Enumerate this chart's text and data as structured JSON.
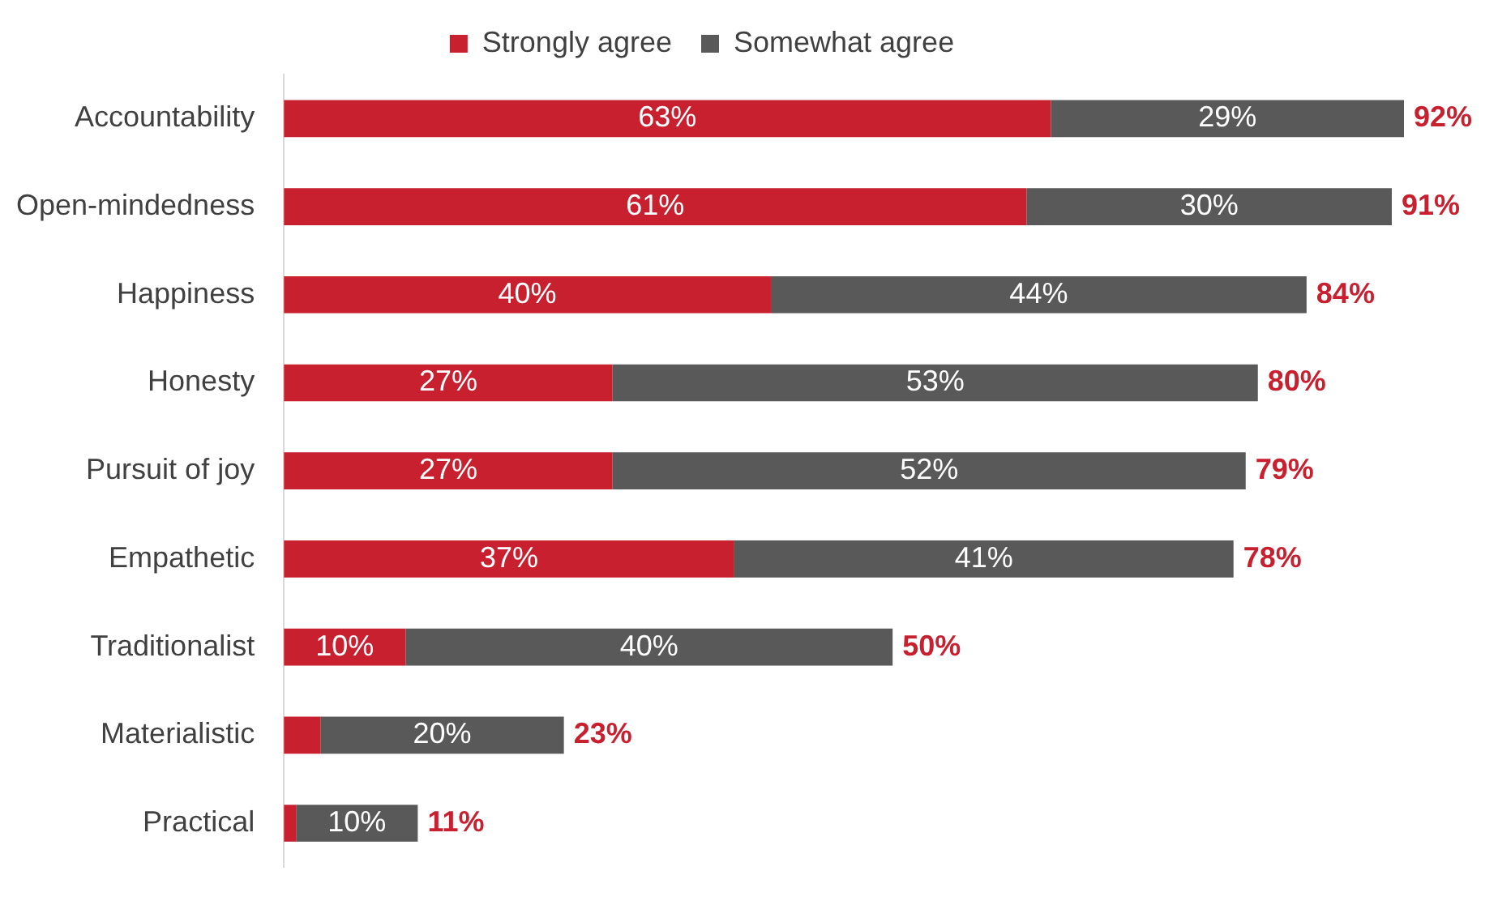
{
  "chart_data": {
    "type": "bar",
    "orientation": "horizontal",
    "stacked": true,
    "legend": "top",
    "categories": [
      "Accountability",
      "Open-mindedness",
      "Happiness",
      "Honesty",
      "Pursuit of joy",
      "Empathetic",
      "Traditionalist",
      "Materialistic",
      "Practical"
    ],
    "series": [
      {
        "name": "Strongly agree",
        "color": "#c8202f",
        "values": [
          63,
          61,
          40,
          27,
          27,
          37,
          10,
          3,
          1
        ],
        "value_labels": [
          "63%",
          "61%",
          "40%",
          "27%",
          "27%",
          "37%",
          "10%",
          null,
          null
        ]
      },
      {
        "name": "Somewhat agree",
        "color": "#595959",
        "values": [
          29,
          30,
          44,
          53,
          52,
          41,
          40,
          20,
          10
        ],
        "value_labels": [
          "29%",
          "30%",
          "44%",
          "53%",
          "52%",
          "41%",
          "40%",
          "20%",
          "10%"
        ]
      }
    ],
    "totals": [
      "92%",
      "91%",
      "84%",
      "80%",
      "79%",
      "78%",
      "50%",
      "23%",
      "11%"
    ]
  }
}
